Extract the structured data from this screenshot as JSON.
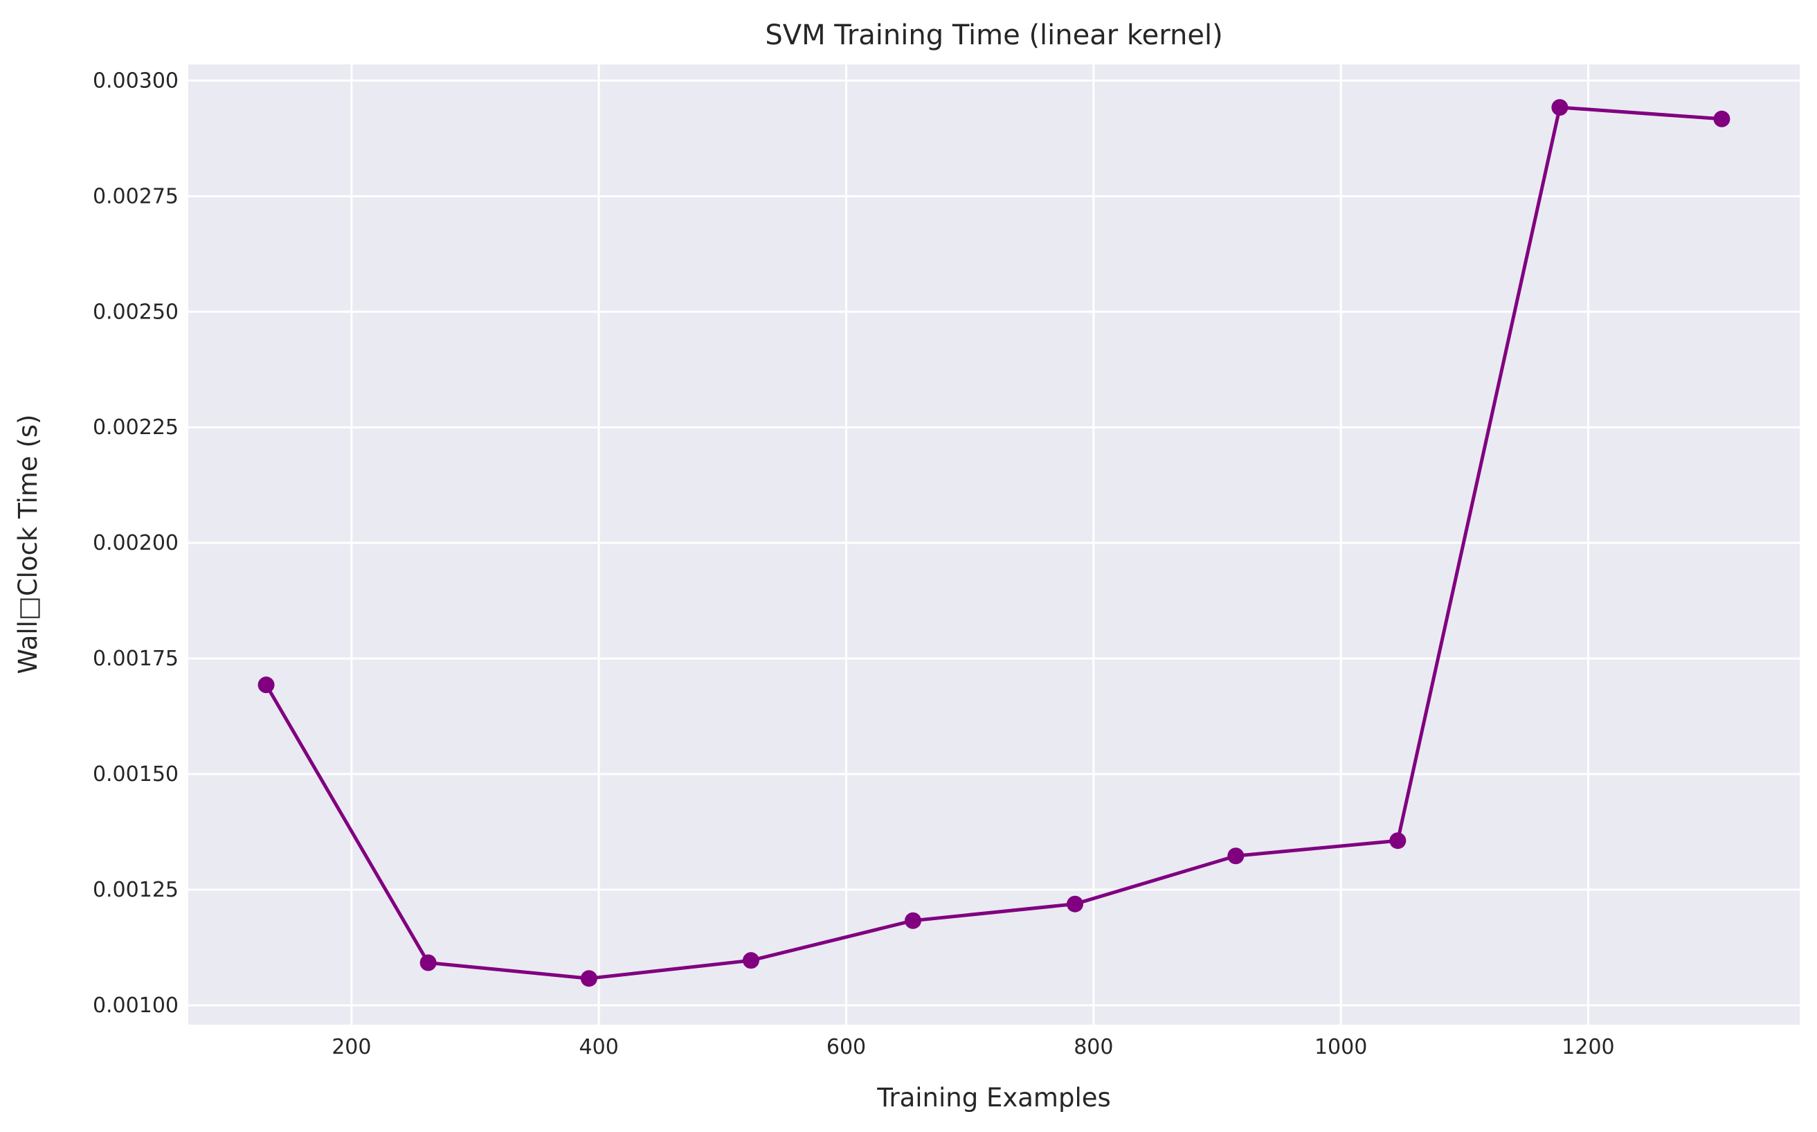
{
  "chart_data": {
    "type": "line",
    "title": "SVM Training Time (linear kernel)",
    "xlabel": "Training Examples",
    "ylabel": "Wall□Clock Time (s)",
    "xlim": [
      68,
      1371
    ],
    "ylim": [
      0.000958,
      0.003035
    ],
    "x_ticks": [
      200,
      400,
      600,
      800,
      1000,
      1200
    ],
    "x_tick_labels": [
      "200",
      "400",
      "600",
      "800",
      "1000",
      "1200"
    ],
    "y_ticks": [
      0.001,
      0.00125,
      0.0015,
      0.00175,
      0.002,
      0.00225,
      0.0025,
      0.00275,
      0.003
    ],
    "y_tick_labels": [
      "0.00100",
      "0.00125",
      "0.00150",
      "0.00175",
      "0.00200",
      "0.00225",
      "0.00250",
      "0.00275",
      "0.00300"
    ],
    "grid": true,
    "background_color": "#eaeaf2",
    "grid_color": "#ffffff",
    "series": [
      {
        "color": "#800080",
        "marker": "circle",
        "x": [
          131,
          262,
          392,
          523,
          654,
          785,
          915,
          1046,
          1177,
          1308
        ],
        "y": [
          0.001693,
          0.001092,
          0.001058,
          0.001097,
          0.001183,
          0.001219,
          0.001323,
          0.001356,
          0.002942,
          0.002917
        ]
      }
    ]
  }
}
